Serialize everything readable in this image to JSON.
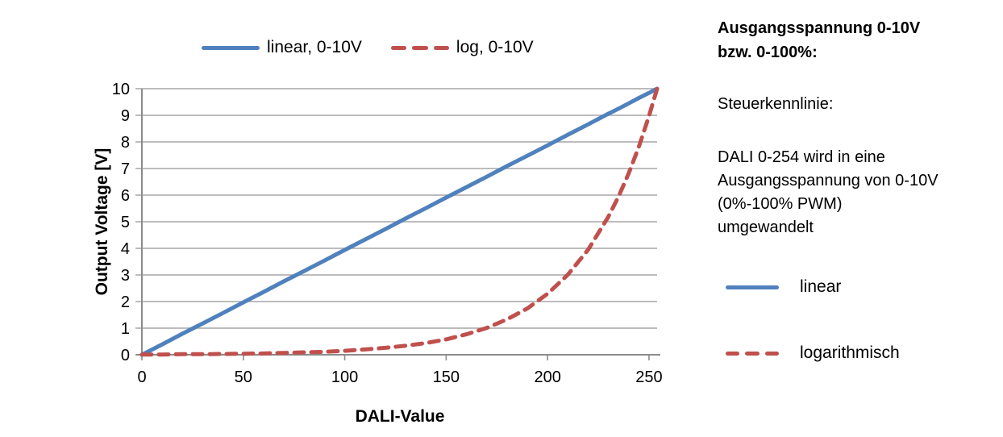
{
  "top_legend": {
    "items": [
      {
        "label": "linear, 0-10V",
        "color": "#4F81BD",
        "style": "solid"
      },
      {
        "label": "log, 0-10V",
        "color": "#C0504D",
        "style": "dashed"
      }
    ]
  },
  "chart_data": {
    "type": "line",
    "xlabel": "DALI-Value",
    "ylabel": "Output Voltage [V]",
    "xlim": [
      0,
      254
    ],
    "ylim": [
      0,
      10
    ],
    "x_ticks": [
      0,
      50,
      100,
      150,
      200,
      250
    ],
    "y_ticks": [
      0,
      1,
      2,
      3,
      4,
      5,
      6,
      7,
      8,
      9,
      10
    ],
    "grid": "horizontal",
    "legend_position": "top",
    "x": [
      0,
      10,
      20,
      30,
      40,
      50,
      60,
      70,
      80,
      90,
      100,
      110,
      120,
      130,
      140,
      150,
      160,
      170,
      180,
      190,
      200,
      210,
      220,
      230,
      235,
      240,
      245,
      250,
      254
    ],
    "series": [
      {
        "name": "linear, 0-10V",
        "color": "#4F81BD",
        "dash": false,
        "values": [
          0,
          0.39,
          0.79,
          1.18,
          1.57,
          1.97,
          2.36,
          2.76,
          3.15,
          3.54,
          3.94,
          4.33,
          4.72,
          5.12,
          5.51,
          5.91,
          6.3,
          6.69,
          7.09,
          7.48,
          7.87,
          8.27,
          8.66,
          9.06,
          9.25,
          9.45,
          9.65,
          9.84,
          10
        ]
      },
      {
        "name": "log, 0-10V",
        "color": "#C0504D",
        "dash": true,
        "values": [
          0.01,
          0.01,
          0.02,
          0.02,
          0.03,
          0.04,
          0.05,
          0.07,
          0.09,
          0.11,
          0.15,
          0.2,
          0.26,
          0.34,
          0.44,
          0.58,
          0.77,
          1.01,
          1.33,
          1.74,
          2.29,
          3.01,
          3.95,
          5.19,
          5.95,
          6.82,
          7.82,
          8.97,
          10
        ]
      }
    ]
  },
  "side_panel": {
    "heading_lines": [
      "Ausgangsspannung 0-10V",
      "bzw. 0-100%:"
    ],
    "subheading": "Steuerkennlinie:",
    "paragraph_lines": [
      "DALI 0-254 wird in eine",
      "Ausgangsspannung von 0-10V",
      "(0%-100% PWM)",
      "umgewandelt"
    ],
    "legend": [
      {
        "label": "linear",
        "color": "#4F81BD",
        "style": "solid"
      },
      {
        "label": "logarithmisch",
        "color": "#C0504D",
        "style": "dashed"
      }
    ]
  },
  "colors": {
    "linear": "#4F81BD",
    "log": "#C0504D",
    "gridline": "#A6A6A6",
    "axis": "#8C8C8C",
    "text": "#000000"
  }
}
